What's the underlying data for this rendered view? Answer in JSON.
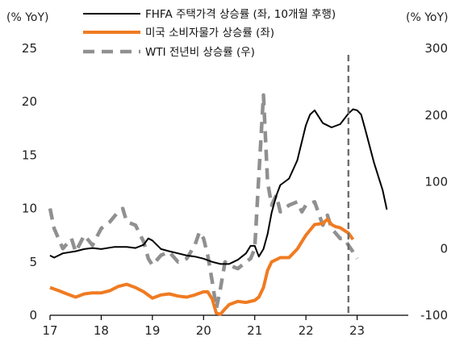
{
  "chart_data": {
    "type": "line",
    "left_axis": {
      "unit": "(% YoY)",
      "ylim": [
        0,
        25
      ],
      "ticks": [
        "0",
        "5",
        "10",
        "15",
        "20",
        "25"
      ]
    },
    "right_axis": {
      "unit": "(% YoY)",
      "ylim": [
        -100,
        300
      ],
      "ticks": [
        "-100",
        "0",
        "100",
        "200",
        "300"
      ]
    },
    "x_axis": {
      "xlim": [
        2017,
        2024
      ],
      "ticks": [
        "17",
        "18",
        "19",
        "20",
        "21",
        "22",
        "23"
      ],
      "tick_positions": [
        2017,
        2018,
        2019,
        2020,
        2021,
        2022,
        2023
      ]
    },
    "legend": {
      "placement": "top-center",
      "entries": [
        "FHFA 주택가격 상승률 (좌, 10개월 후행)",
        "미국 소비자물가 상승률 (좌)",
        "WTI 전년비 상승률 (우)"
      ]
    },
    "vertical_marker": {
      "x": 2022.83,
      "style": "dashed"
    },
    "grid": false,
    "series": [
      {
        "name": "FHFA 주택가격 상승률 (좌, 10개월 후행)",
        "axis": "left",
        "color": "#000000",
        "dash": "solid",
        "x": [
          2017.0,
          2017.08,
          2017.25,
          2017.5,
          2017.67,
          2017.83,
          2018.0,
          2018.25,
          2018.5,
          2018.67,
          2018.83,
          2018.92,
          2019.0,
          2019.17,
          2019.33,
          2019.5,
          2019.67,
          2019.83,
          2020.0,
          2020.17,
          2020.33,
          2020.5,
          2020.67,
          2020.83,
          2020.92,
          2021.0,
          2021.08,
          2021.17,
          2021.25,
          2021.33,
          2021.42,
          2021.5,
          2021.67,
          2021.83,
          2022.0,
          2022.08,
          2022.17,
          2022.33,
          2022.5,
          2022.67,
          2022.83,
          2022.92,
          2023.0,
          2023.08,
          2023.17,
          2023.33,
          2023.5,
          2023.58
        ],
        "values": [
          5.6,
          5.4,
          5.8,
          6.0,
          6.2,
          6.3,
          6.2,
          6.4,
          6.4,
          6.3,
          6.6,
          7.2,
          7.0,
          6.2,
          6.0,
          5.8,
          5.6,
          5.5,
          5.3,
          5.0,
          4.8,
          4.8,
          5.2,
          5.8,
          6.5,
          6.5,
          5.5,
          6.2,
          7.6,
          9.6,
          11.2,
          12.2,
          12.8,
          14.5,
          17.8,
          18.8,
          19.2,
          18.0,
          17.6,
          17.9,
          18.9,
          19.3,
          19.2,
          18.8,
          17.2,
          14.3,
          11.7,
          9.9
        ]
      },
      {
        "name": "미국 소비자물가 상승률 (좌)",
        "axis": "left",
        "color": "#F07B22",
        "dash": "solid",
        "x": [
          2017.0,
          2017.17,
          2017.33,
          2017.5,
          2017.67,
          2017.83,
          2018.0,
          2018.17,
          2018.33,
          2018.5,
          2018.67,
          2018.83,
          2019.0,
          2019.17,
          2019.33,
          2019.5,
          2019.67,
          2019.83,
          2020.0,
          2020.08,
          2020.17,
          2020.25,
          2020.33,
          2020.42,
          2020.5,
          2020.67,
          2020.83,
          2021.0,
          2021.08,
          2021.17,
          2021.25,
          2021.33,
          2021.5,
          2021.67,
          2021.83,
          2022.0,
          2022.17,
          2022.33,
          2022.42,
          2022.5,
          2022.58,
          2022.67,
          2022.83,
          2022.92
        ],
        "values": [
          2.6,
          2.3,
          2.0,
          1.7,
          2.0,
          2.1,
          2.1,
          2.3,
          2.7,
          2.9,
          2.6,
          2.2,
          1.6,
          1.9,
          2.0,
          1.8,
          1.7,
          1.9,
          2.2,
          2.2,
          1.5,
          0.2,
          0.1,
          0.6,
          1.0,
          1.3,
          1.2,
          1.4,
          1.7,
          2.6,
          4.2,
          5.0,
          5.4,
          5.4,
          6.2,
          7.5,
          8.5,
          8.6,
          9.0,
          8.5,
          8.3,
          8.2,
          7.7,
          7.1
        ]
      },
      {
        "name": "WTI 전년비 상승률 (우)",
        "axis": "right",
        "color": "#909090",
        "dash": "dashed",
        "x": [
          2017.0,
          2017.08,
          2017.25,
          2017.42,
          2017.5,
          2017.67,
          2017.83,
          2018.0,
          2018.17,
          2018.33,
          2018.42,
          2018.5,
          2018.67,
          2018.83,
          2018.92,
          2019.0,
          2019.17,
          2019.33,
          2019.5,
          2019.67,
          2019.83,
          2019.92,
          2020.0,
          2020.08,
          2020.17,
          2020.25,
          2020.33,
          2020.42,
          2020.5,
          2020.67,
          2020.83,
          2020.92,
          2021.0,
          2021.08,
          2021.17,
          2021.25,
          2021.33,
          2021.42,
          2021.5,
          2021.58,
          2021.67,
          2021.83,
          2021.92,
          2022.0,
          2022.17,
          2022.33,
          2022.42,
          2022.5,
          2022.67,
          2022.75,
          2022.83,
          2022.92,
          2023.0
        ],
        "values": [
          60,
          30,
          0,
          15,
          -5,
          20,
          5,
          30,
          40,
          55,
          60,
          40,
          35,
          10,
          -15,
          -25,
          -10,
          -5,
          -20,
          -15,
          5,
          25,
          15,
          -10,
          -50,
          -90,
          -60,
          -20,
          -25,
          -30,
          -20,
          -15,
          0,
          110,
          230,
          100,
          65,
          80,
          55,
          60,
          65,
          70,
          55,
          65,
          70,
          35,
          50,
          30,
          15,
          15,
          5,
          -5,
          -15
        ]
      }
    ]
  }
}
